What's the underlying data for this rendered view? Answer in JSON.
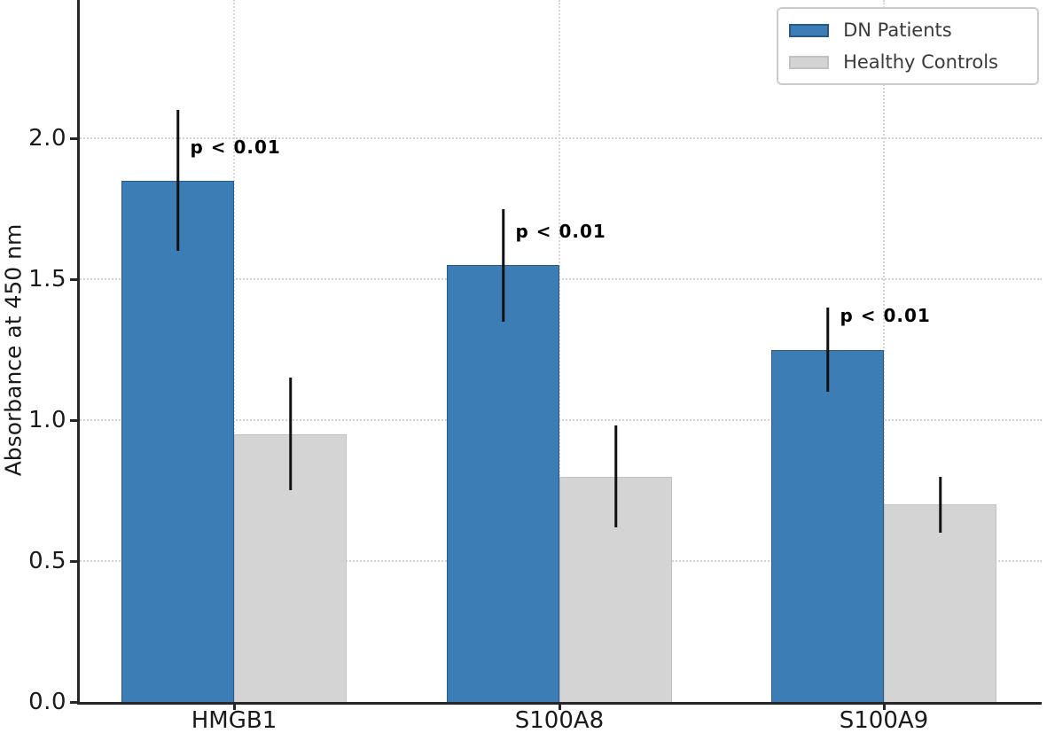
{
  "chart_data": {
    "type": "bar",
    "title": "",
    "xlabel": "",
    "ylabel": "Absorbance at 450 nm",
    "categories": [
      "HMGB1",
      "S100A8",
      "S100A9"
    ],
    "series": [
      {
        "name": "DN Patients",
        "color": "#3d7db5",
        "edge_color": "#27598a",
        "values": [
          1.85,
          1.55,
          1.25
        ],
        "errors": [
          0.25,
          0.2,
          0.15
        ]
      },
      {
        "name": "Healthy Controls",
        "color": "#d4d4d4",
        "edge_color": "#c2c2c2",
        "values": [
          0.95,
          0.8,
          0.7
        ],
        "errors": [
          0.2,
          0.18,
          0.1
        ]
      }
    ],
    "annotations": [
      {
        "text": "p < 0.01",
        "category": "HMGB1"
      },
      {
        "text": "p < 0.01",
        "category": "S100A8"
      },
      {
        "text": "p < 0.01",
        "category": "S100A9"
      }
    ],
    "yticks": [
      "0.0",
      "0.5",
      "1.0",
      "1.5",
      "2.0"
    ],
    "ylim": [
      0,
      2.49
    ],
    "grid": true,
    "grid_style": "dotted",
    "legend_position": "upper right",
    "colors": {
      "error_bar": "#111111",
      "grid": "#d2d2d2",
      "spine": "#262626",
      "tick_text": "#1a1a1a",
      "annotation_text": "#000000"
    }
  }
}
